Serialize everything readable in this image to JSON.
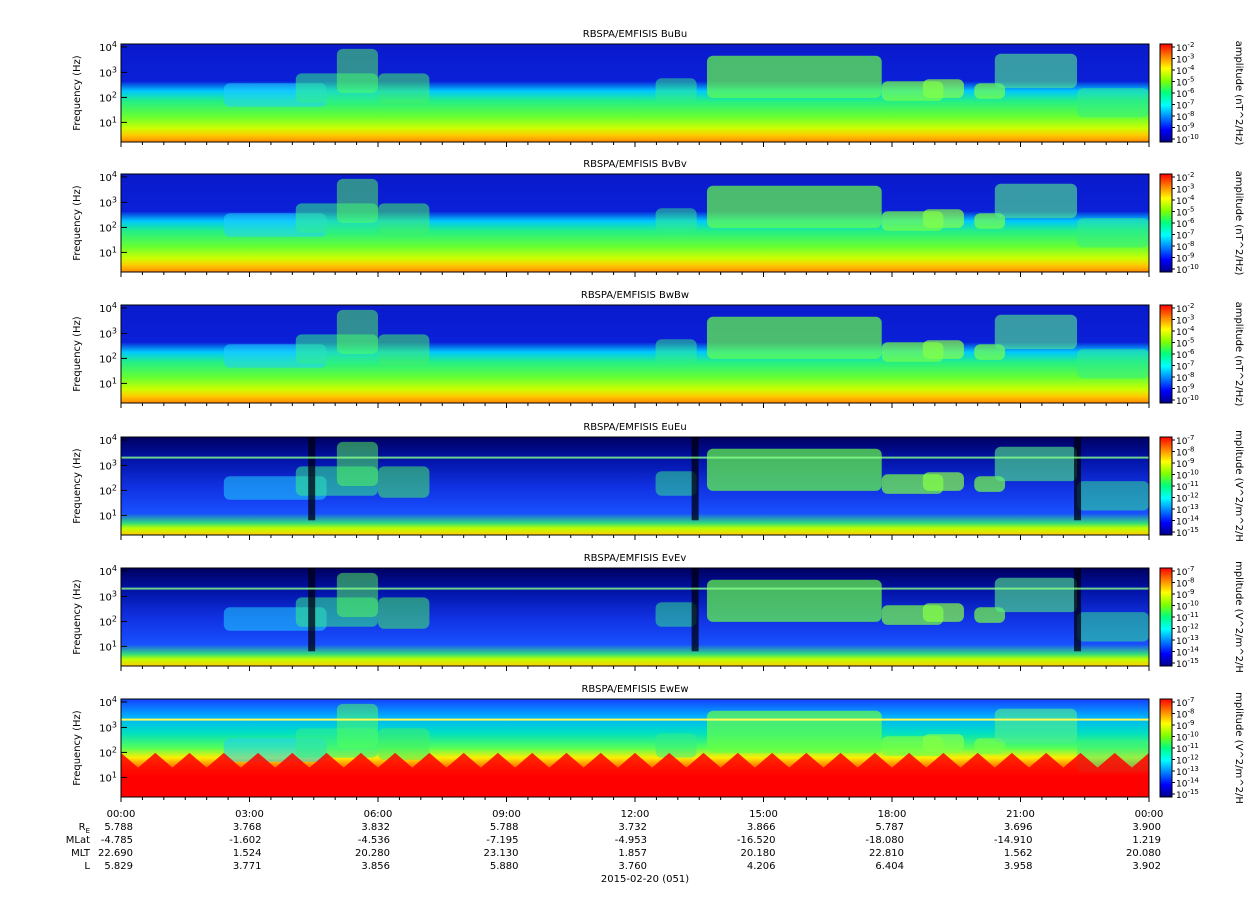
{
  "chart_data": {
    "type": "heatmap",
    "panels": [
      {
        "title": "RBSPA/EMFISIS  BuBu",
        "ylabel": "Frequency (Hz)",
        "cbar_label": "amplitude (nT^2/Hz)",
        "cbar_ticks": [
          "10-2",
          "10-3",
          "10-4",
          "10-5",
          "10-6",
          "10-7",
          "10-8",
          "10-9",
          "10-10"
        ],
        "kind": "B"
      },
      {
        "title": "RBSPA/EMFISIS  BvBv",
        "ylabel": "Frequency (Hz)",
        "cbar_label": "amplitude (nT^2/Hz)",
        "cbar_ticks": [
          "10-2",
          "10-3",
          "10-4",
          "10-5",
          "10-6",
          "10-7",
          "10-8",
          "10-9",
          "10-10"
        ],
        "kind": "B"
      },
      {
        "title": "RBSPA/EMFISIS  BwBw",
        "ylabel": "Frequency (Hz)",
        "cbar_label": "amplitude (nT^2/Hz)",
        "cbar_ticks": [
          "10-2",
          "10-3",
          "10-4",
          "10-5",
          "10-6",
          "10-7",
          "10-8",
          "10-9",
          "10-10"
        ],
        "kind": "B"
      },
      {
        "title": "RBSPA/EMFISIS  EuEu",
        "ylabel": "Frequency (Hz)",
        "cbar_label": "mplitude (V^2/m^2/H",
        "cbar_ticks": [
          "10-7",
          "10-8",
          "10-9",
          "10-10",
          "10-11",
          "10-12",
          "10-13",
          "10-14",
          "10-15"
        ],
        "kind": "E"
      },
      {
        "title": "RBSPA/EMFISIS  EvEv",
        "ylabel": "Frequency (Hz)",
        "cbar_label": "mplitude (V^2/m^2/H",
        "cbar_ticks": [
          "10-7",
          "10-8",
          "10-9",
          "10-10",
          "10-11",
          "10-12",
          "10-13",
          "10-14",
          "10-15"
        ],
        "kind": "E"
      },
      {
        "title": "RBSPA/EMFISIS  EwEw",
        "ylabel": "Frequency (Hz)",
        "cbar_label": "mplitude (V^2/m^2/H",
        "cbar_ticks": [
          "10-7",
          "10-8",
          "10-9",
          "10-10",
          "10-11",
          "10-12",
          "10-13",
          "10-14",
          "10-15"
        ],
        "kind": "Ew"
      }
    ],
    "yticks": [
      {
        "base": "10",
        "exp": "4"
      },
      {
        "base": "10",
        "exp": "3"
      },
      {
        "base": "10",
        "exp": "2"
      },
      {
        "base": "10",
        "exp": "1"
      }
    ],
    "xticks": [
      "00:00",
      "03:00",
      "06:00",
      "09:00",
      "12:00",
      "15:00",
      "18:00",
      "21:00",
      "00:00"
    ],
    "ephemeris": {
      "labels": [
        "MLat",
        "MLT",
        "L"
      ],
      "re_label": {
        "base": "R",
        "sub": "E"
      },
      "re": [
        "5.788",
        "3.768",
        "3.832",
        "5.788",
        "3.732",
        "3.866",
        "5.787",
        "3.696",
        "3.900"
      ],
      "mlat": [
        "-4.785",
        "-1.602",
        "-4.536",
        "-7.195",
        "-4.953",
        "-16.520",
        "-18.080",
        "-14.910",
        "1.219"
      ],
      "mlt": [
        "22.690",
        "1.524",
        "20.280",
        "23.130",
        "1.857",
        "20.180",
        "22.810",
        "1.562",
        "20.080"
      ],
      "l": [
        "5.829",
        "3.771",
        "3.856",
        "5.880",
        "3.760",
        "4.206",
        "6.404",
        "3.958",
        "3.902"
      ]
    },
    "date_label": "2015-02-20 (051)",
    "colorscale": [
      "#ff0000",
      "#ff8000",
      "#ffff00",
      "#80ff00",
      "#00ff80",
      "#00ffff",
      "#0080ff",
      "#0000ff",
      "#00008b"
    ]
  }
}
